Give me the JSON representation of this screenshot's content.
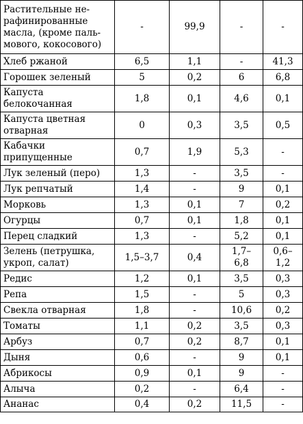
{
  "table": {
    "rows": [
      {
        "name": "Растительные не-\nрафинированные\nмасла, (кроме паль-\nмового, кокосового)",
        "c1": "-",
        "c2": "99,9",
        "c3": "-",
        "c4": "-"
      },
      {
        "name": "Хлеб ржаной",
        "c1": "6,5",
        "c2": "1,1",
        "c3": "-",
        "c4": "41,3"
      },
      {
        "name": "Горошек зеленый",
        "c1": "5",
        "c2": "0,2",
        "c3": "6",
        "c4": "6,8"
      },
      {
        "name": "Капуста\nбелокочанная",
        "c1": "1,8",
        "c2": "0,1",
        "c3": "4,6",
        "c4": "0,1"
      },
      {
        "name": "Капуста цветная\nотварная",
        "c1": "0",
        "c2": "0,3",
        "c3": "3,5",
        "c4": "0,5"
      },
      {
        "name": "Кабачки\nприпущенные",
        "c1": "0,7",
        "c2": "1,9",
        "c3": "5,3",
        "c4": "-"
      },
      {
        "name": "Лук зеленый (перо)",
        "c1": "1,3",
        "c2": "-",
        "c3": "3,5",
        "c4": "-"
      },
      {
        "name": "Лук репчатый",
        "c1": "1,4",
        "c2": "-",
        "c3": "9",
        "c4": "0,1"
      },
      {
        "name": "Морковь",
        "c1": "1,3",
        "c2": "0,1",
        "c3": "7",
        "c4": "0,2"
      },
      {
        "name": "Огурцы",
        "c1": "0,7",
        "c2": "0,1",
        "c3": "1,8",
        "c4": "0,1"
      },
      {
        "name": "Перец сладкий",
        "c1": "1,3",
        "c2": "-",
        "c3": "5,2",
        "c4": "0,1"
      },
      {
        "name": "Зелень (петрушка,\nукроп, салат)",
        "c1": "1,5–3,7",
        "c2": "0,4",
        "c3": "1,7–\n6,8",
        "c4": "0,6–\n1,2"
      },
      {
        "name": "Редис",
        "c1": "1,2",
        "c2": "0,1",
        "c3": "3,5",
        "c4": "0,3"
      },
      {
        "name": "Репа",
        "c1": "1,5",
        "c2": "-",
        "c3": "5",
        "c4": "0,3"
      },
      {
        "name": "Свекла отварная",
        "c1": "1,8",
        "c2": "-",
        "c3": "10,6",
        "c4": "0,2"
      },
      {
        "name": "Томаты",
        "c1": "1,1",
        "c2": "0,2",
        "c3": "3,5",
        "c4": "0,3"
      },
      {
        "name": "Арбуз",
        "c1": "0,7",
        "c2": "0,2",
        "c3": "8,7",
        "c4": "0,1"
      },
      {
        "name": "Дыня",
        "c1": "0,6",
        "c2": "-",
        "c3": "9",
        "c4": "0,1"
      },
      {
        "name": "Абрикосы",
        "c1": "0,9",
        "c2": "0,1",
        "c3": "9",
        "c4": "-"
      },
      {
        "name": "Алыча",
        "c1": "0,2",
        "c2": "-",
        "c3": "6,4",
        "c4": "-"
      },
      {
        "name": "Ананас",
        "c1": "0,4",
        "c2": "0,2",
        "c3": "11,5",
        "c4": "-"
      }
    ]
  }
}
